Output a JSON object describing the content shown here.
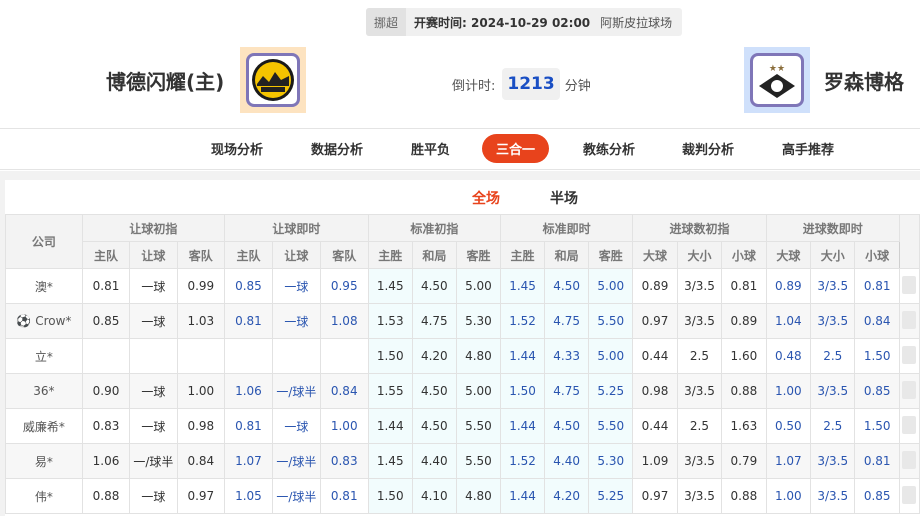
{
  "match": {
    "league": "挪超",
    "time_label": "开赛时间:",
    "time": "2024-10-29 02:00",
    "venue": "阿斯皮拉球场",
    "home": "博德闪耀(主)",
    "away": "罗森博格",
    "countdown_label": "倒计时:",
    "countdown": "1213",
    "countdown_unit": "分钟",
    "home_logo_text": "BODØ/GLIMT"
  },
  "nav": [
    "现场分析",
    "数据分析",
    "胜平负",
    "三合一",
    "教练分析",
    "裁判分析",
    "高手推荐"
  ],
  "nav_active": "三合一",
  "subtabs": [
    "全场",
    "半场"
  ],
  "table": {
    "company_header": "公司",
    "groups": [
      "让球初指",
      "让球即时",
      "标准初指",
      "标准即时",
      "进球数初指",
      "进球数即时"
    ],
    "subheaders": [
      "主队",
      "让球",
      "客队",
      "主队",
      "让球",
      "客队",
      "主胜",
      "和局",
      "客胜",
      "主胜",
      "和局",
      "客胜",
      "大球",
      "大小",
      "小球",
      "大球",
      "大小",
      "小球"
    ],
    "rows": [
      {
        "company": "澳*",
        "v": [
          "0.81",
          "一球",
          "0.99",
          "0.85",
          "一球",
          "0.95",
          "1.45",
          "4.50",
          "5.00",
          "1.45",
          "4.50",
          "5.00",
          "0.89",
          "3/3.5",
          "0.81",
          "0.89",
          "3/3.5",
          "0.81"
        ]
      },
      {
        "company": "Crow*",
        "icon": "soccer-ball-icon",
        "v": [
          "0.85",
          "一球",
          "1.03",
          "0.81",
          "一球",
          "1.08",
          "1.53",
          "4.75",
          "5.30",
          "1.52",
          "4.75",
          "5.50",
          "0.97",
          "3/3.5",
          "0.89",
          "1.04",
          "3/3.5",
          "0.84"
        ]
      },
      {
        "company": "立*",
        "v": [
          "",
          "",
          "",
          "",
          "",
          "",
          "1.50",
          "4.20",
          "4.80",
          "1.44",
          "4.33",
          "5.00",
          "0.44",
          "2.5",
          "1.60",
          "0.48",
          "2.5",
          "1.50"
        ]
      },
      {
        "company": "36*",
        "v": [
          "0.90",
          "一球",
          "1.00",
          "1.06",
          "一/球半",
          "0.84",
          "1.55",
          "4.50",
          "5.00",
          "1.50",
          "4.75",
          "5.25",
          "0.98",
          "3/3.5",
          "0.88",
          "1.00",
          "3/3.5",
          "0.85"
        ]
      },
      {
        "company": "威廉希*",
        "v": [
          "0.83",
          "一球",
          "0.98",
          "0.81",
          "一球",
          "1.00",
          "1.44",
          "4.50",
          "5.50",
          "1.44",
          "4.50",
          "5.50",
          "0.44",
          "2.5",
          "1.63",
          "0.50",
          "2.5",
          "1.50"
        ]
      },
      {
        "company": "易*",
        "v": [
          "1.06",
          "一/球半",
          "0.84",
          "1.07",
          "一/球半",
          "0.83",
          "1.45",
          "4.40",
          "5.50",
          "1.52",
          "4.40",
          "5.30",
          "1.09",
          "3/3.5",
          "0.79",
          "1.07",
          "3/3.5",
          "0.81"
        ]
      },
      {
        "company": "伟*",
        "v": [
          "0.88",
          "一球",
          "0.97",
          "1.05",
          "一/球半",
          "0.81",
          "1.50",
          "4.10",
          "4.80",
          "1.44",
          "4.20",
          "5.25",
          "0.97",
          "3/3.5",
          "0.88",
          "1.00",
          "3/3.5",
          "0.85"
        ]
      }
    ]
  },
  "colors": {
    "accent": "#e8431c",
    "live_value": "#2a55b0",
    "countdown": "#1a4fc4"
  }
}
